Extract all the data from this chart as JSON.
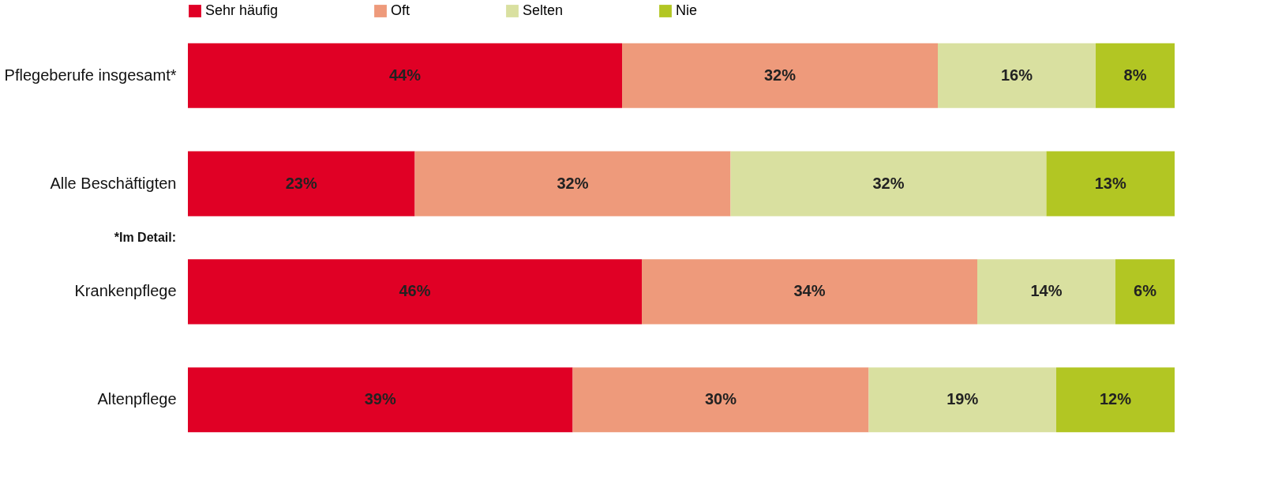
{
  "chart_data": {
    "type": "bar",
    "orientation": "horizontal",
    "stacked": true,
    "legend": "top",
    "grid": false,
    "tick_labels": "y",
    "categories": [
      "Pflegeberufe insgesamt*",
      "Alle Beschäftigten",
      "Krankenpflege",
      "Altenpflege"
    ],
    "series": [
      {
        "name": "Sehr häufig",
        "color": "#e00025",
        "values": [
          44,
          23,
          46,
          39
        ],
        "value_labels": [
          "44%",
          "23%",
          "46%",
          "39%"
        ]
      },
      {
        "name": "Oft",
        "color": "#ee9a7b",
        "values": [
          32,
          32,
          34,
          30
        ],
        "value_labels": [
          "32%",
          "32%",
          "34%",
          "30%"
        ]
      },
      {
        "name": "Selten",
        "color": "#d9e0a0",
        "values": [
          16,
          32,
          14,
          19
        ],
        "value_labels": [
          "16%",
          "32%",
          "14%",
          "19%"
        ]
      },
      {
        "name": "Nie",
        "color": "#b2c623",
        "values": [
          8,
          13,
          6,
          12
        ],
        "value_labels": [
          "8%",
          "13%",
          "6%",
          "12%"
        ]
      }
    ],
    "annotations": [
      "*Im Detail:"
    ]
  }
}
